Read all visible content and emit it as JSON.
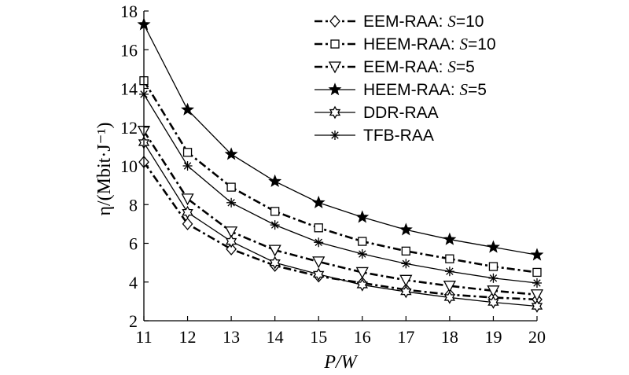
{
  "chart_data": {
    "type": "line",
    "xlabel": "P/W",
    "ylabel": "η/(Mbit·J⁻¹)",
    "x": [
      11,
      12,
      13,
      14,
      15,
      16,
      17,
      18,
      19,
      20
    ],
    "xlim": [
      11,
      20
    ],
    "ylim": [
      2,
      18
    ],
    "xticks": [
      11,
      12,
      13,
      14,
      15,
      16,
      17,
      18,
      19,
      20
    ],
    "yticks": [
      2,
      4,
      6,
      8,
      10,
      12,
      14,
      16,
      18
    ],
    "grid": false,
    "legend_position": "top-right",
    "series": [
      {
        "name": "EEM-RAA: S=10",
        "name_parts": [
          "EEM-RAA: ",
          "S",
          "=10"
        ],
        "marker": "diamond",
        "line": "dash-dot-thick",
        "values": [
          10.2,
          7.0,
          5.7,
          4.85,
          4.3,
          3.95,
          3.6,
          3.35,
          3.2,
          3.1
        ]
      },
      {
        "name": "HEEM-RAA: S=10",
        "name_parts": [
          "HEEM-RAA: ",
          "S",
          "=10"
        ],
        "marker": "square",
        "line": "dash-dot-thick",
        "values": [
          14.4,
          10.7,
          8.9,
          7.65,
          6.8,
          6.1,
          5.6,
          5.2,
          4.8,
          4.5
        ]
      },
      {
        "name": "EEM-RAA: S=5",
        "name_parts": [
          "EEM-RAA: ",
          "S",
          "=5"
        ],
        "marker": "triangle-down",
        "line": "dash-dot-thick",
        "values": [
          11.8,
          8.3,
          6.6,
          5.65,
          5.05,
          4.5,
          4.1,
          3.8,
          3.55,
          3.35
        ]
      },
      {
        "name": "HEEM-RAA: S=5",
        "name_parts": [
          "HEEM-RAA: ",
          "S",
          "=5"
        ],
        "marker": "star",
        "line": "solid",
        "values": [
          17.3,
          12.9,
          10.6,
          9.2,
          8.1,
          7.35,
          6.7,
          6.2,
          5.8,
          5.4
        ]
      },
      {
        "name": "DDR-RAA",
        "name_parts": [
          "DDR-RAA",
          "",
          ""
        ],
        "marker": "hexagram",
        "line": "solid",
        "values": [
          11.2,
          7.6,
          6.1,
          5.0,
          4.4,
          3.85,
          3.5,
          3.2,
          2.95,
          2.75
        ]
      },
      {
        "name": "TFB-RAA",
        "name_parts": [
          "TFB-RAA",
          "",
          ""
        ],
        "marker": "asterisk",
        "line": "solid",
        "values": [
          13.7,
          10.0,
          8.1,
          6.95,
          6.05,
          5.45,
          4.95,
          4.55,
          4.2,
          3.95
        ]
      }
    ]
  }
}
